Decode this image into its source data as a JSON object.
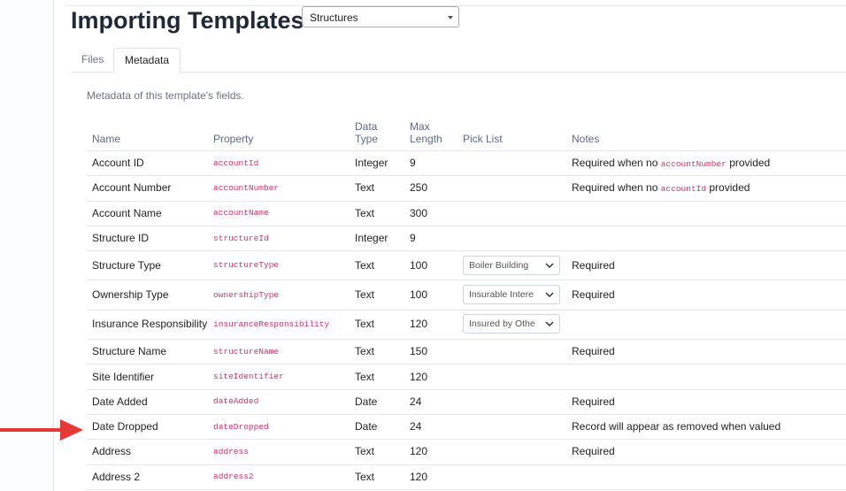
{
  "header": {
    "title": "Importing Templates",
    "template_select": "Structures"
  },
  "tabs": [
    "Files",
    "Metadata"
  ],
  "description": "Metadata of this template's fields.",
  "table": {
    "columns": [
      "Name",
      "Property",
      "Data Type",
      "Max Length",
      "Pick List",
      "Notes"
    ],
    "rows": [
      {
        "name": "Account ID",
        "property": "accountId",
        "type": "Integer",
        "length": "9",
        "notes": [
          {
            "text": "Required when no "
          },
          {
            "code": "accountNumber"
          },
          {
            "text": " provided"
          }
        ]
      },
      {
        "name": "Account Number",
        "property": "accountNumber",
        "type": "Text",
        "length": "250",
        "notes": [
          {
            "text": "Required when no "
          },
          {
            "code": "accountId"
          },
          {
            "text": " provided"
          }
        ]
      },
      {
        "name": "Account Name",
        "property": "accountName",
        "type": "Text",
        "length": "300"
      },
      {
        "name": "Structure ID",
        "property": "structureId",
        "type": "Integer",
        "length": "9"
      },
      {
        "name": "Structure Type",
        "property": "structureType",
        "type": "Text",
        "length": "100",
        "pick_list": "Boiler Building",
        "notes": [
          {
            "text": "Required"
          }
        ]
      },
      {
        "name": "Ownership Type",
        "property": "ownershipType",
        "type": "Text",
        "length": "100",
        "pick_list": "Insurable Intere",
        "notes": [
          {
            "text": "Required"
          }
        ]
      },
      {
        "name": "Insurance Responsibility",
        "property": "insuranceResponsibility",
        "type": "Text",
        "length": "120",
        "pick_list": "Insured by Othe"
      },
      {
        "name": "Structure Name",
        "property": "structureName",
        "type": "Text",
        "length": "150",
        "notes": [
          {
            "text": "Required"
          }
        ]
      },
      {
        "name": "Site Identifier",
        "property": "siteIdentifier",
        "type": "Text",
        "length": "120"
      },
      {
        "name": "Date Added",
        "property": "dateAdded",
        "type": "Date",
        "length": "24",
        "notes": [
          {
            "text": "Required"
          }
        ]
      },
      {
        "name": "Date Dropped",
        "property": "dateDropped",
        "type": "Date",
        "length": "24",
        "notes": [
          {
            "text": "Record will appear as removed when valued"
          }
        ]
      },
      {
        "name": "Address",
        "property": "address",
        "type": "Text",
        "length": "120",
        "notes": [
          {
            "text": "Required"
          }
        ]
      },
      {
        "name": "Address 2",
        "property": "address2",
        "type": "Text",
        "length": "120"
      }
    ]
  }
}
